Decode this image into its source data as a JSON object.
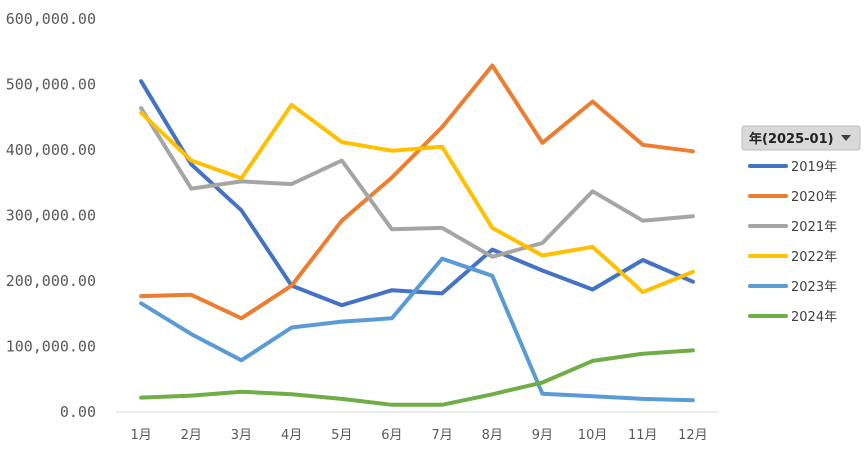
{
  "chart_data": {
    "type": "line",
    "title": "",
    "xlabel": "",
    "ylabel": "",
    "categories": [
      "1月",
      "2月",
      "3月",
      "4月",
      "5月",
      "6月",
      "7月",
      "8月",
      "9月",
      "10月",
      "11月",
      "12月"
    ],
    "ylim": [
      0,
      600000
    ],
    "yticks": [
      "0.00",
      "100,000.00",
      "200,000.00",
      "300,000.00",
      "400,000.00",
      "500,000.00",
      "600,000.00"
    ],
    "ytick_values": [
      0,
      100000,
      200000,
      300000,
      400000,
      500000,
      600000
    ],
    "grid": false,
    "legend_position": "right",
    "series": [
      {
        "name": "2019年",
        "color": "#4472C4",
        "values": [
          505000,
          378000,
          308000,
          193000,
          163000,
          186000,
          181000,
          248000,
          216000,
          187000,
          232000,
          199000
        ]
      },
      {
        "name": "2020年",
        "color": "#ED7D31",
        "values": [
          177000,
          179000,
          143000,
          193000,
          292000,
          358000,
          435000,
          529000,
          411000,
          474000,
          408000,
          398000
        ]
      },
      {
        "name": "2021年",
        "color": "#A5A5A5",
        "values": [
          464000,
          341000,
          352000,
          348000,
          384000,
          279000,
          281000,
          237000,
          258000,
          337000,
          292000,
          299000
        ]
      },
      {
        "name": "2022年",
        "color": "#FFC000",
        "values": [
          457000,
          384000,
          357000,
          469000,
          412000,
          399000,
          405000,
          281000,
          239000,
          252000,
          183000,
          214000
        ]
      },
      {
        "name": "2023年",
        "color": "#5B9BD5",
        "values": [
          166000,
          119000,
          79000,
          129000,
          138000,
          143000,
          234000,
          208000,
          28000,
          24000,
          20000,
          18000
        ]
      },
      {
        "name": "2024年",
        "color": "#70AD47",
        "values": [
          22000,
          25000,
          31000,
          27000,
          20000,
          11000,
          11000,
          27000,
          45000,
          78000,
          89000,
          94000
        ]
      }
    ]
  },
  "filter": {
    "label": "年(2025-01)",
    "icon": "dropdown-arrow-icon"
  }
}
